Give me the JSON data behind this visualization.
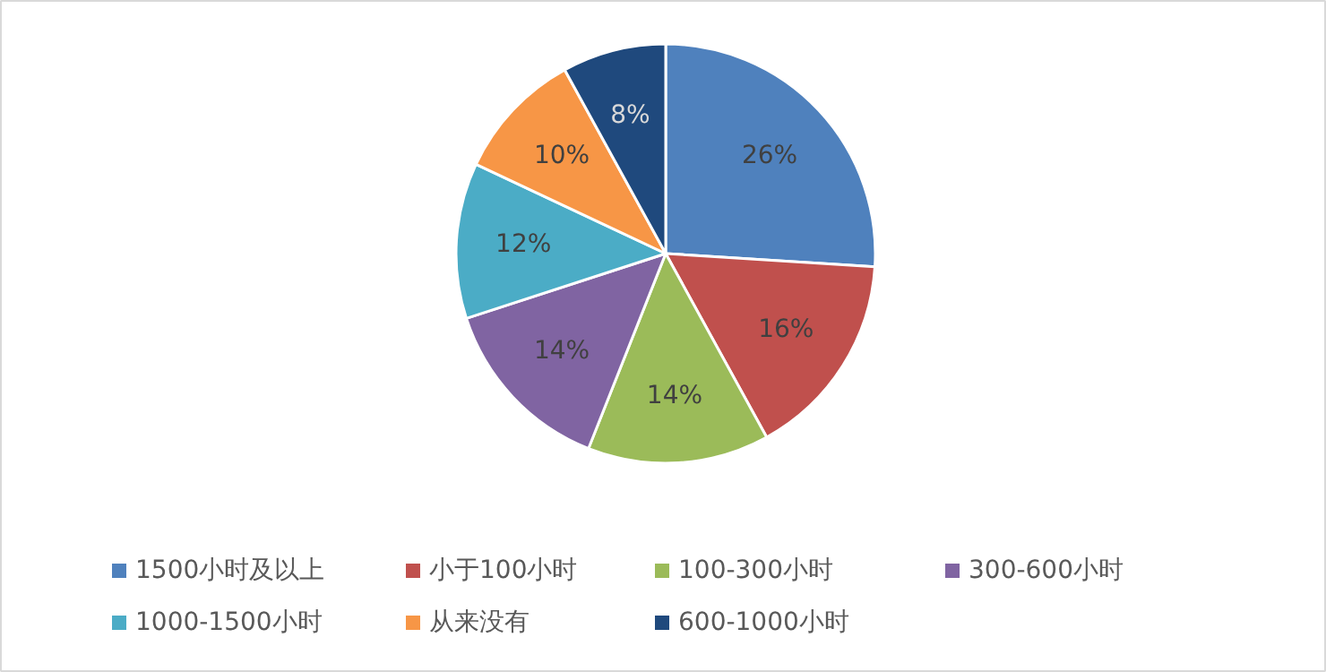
{
  "chart_data": {
    "type": "pie",
    "categories": [
      "1500小时及以上",
      "小于100小时",
      "100-300小时",
      "300-600小时",
      "1000-1500小时",
      "从来没有",
      "600-1000小时"
    ],
    "values": [
      26,
      16,
      14,
      14,
      12,
      10,
      8
    ],
    "colors": [
      "#4f81bd",
      "#c0504d",
      "#9bbb59",
      "#8064a2",
      "#4bacc6",
      "#f79646",
      "#1f497d"
    ],
    "value_labels": [
      "26%",
      "16%",
      "14%",
      "14%",
      "12%",
      "10%",
      "8%"
    ],
    "legend": "bottom"
  }
}
